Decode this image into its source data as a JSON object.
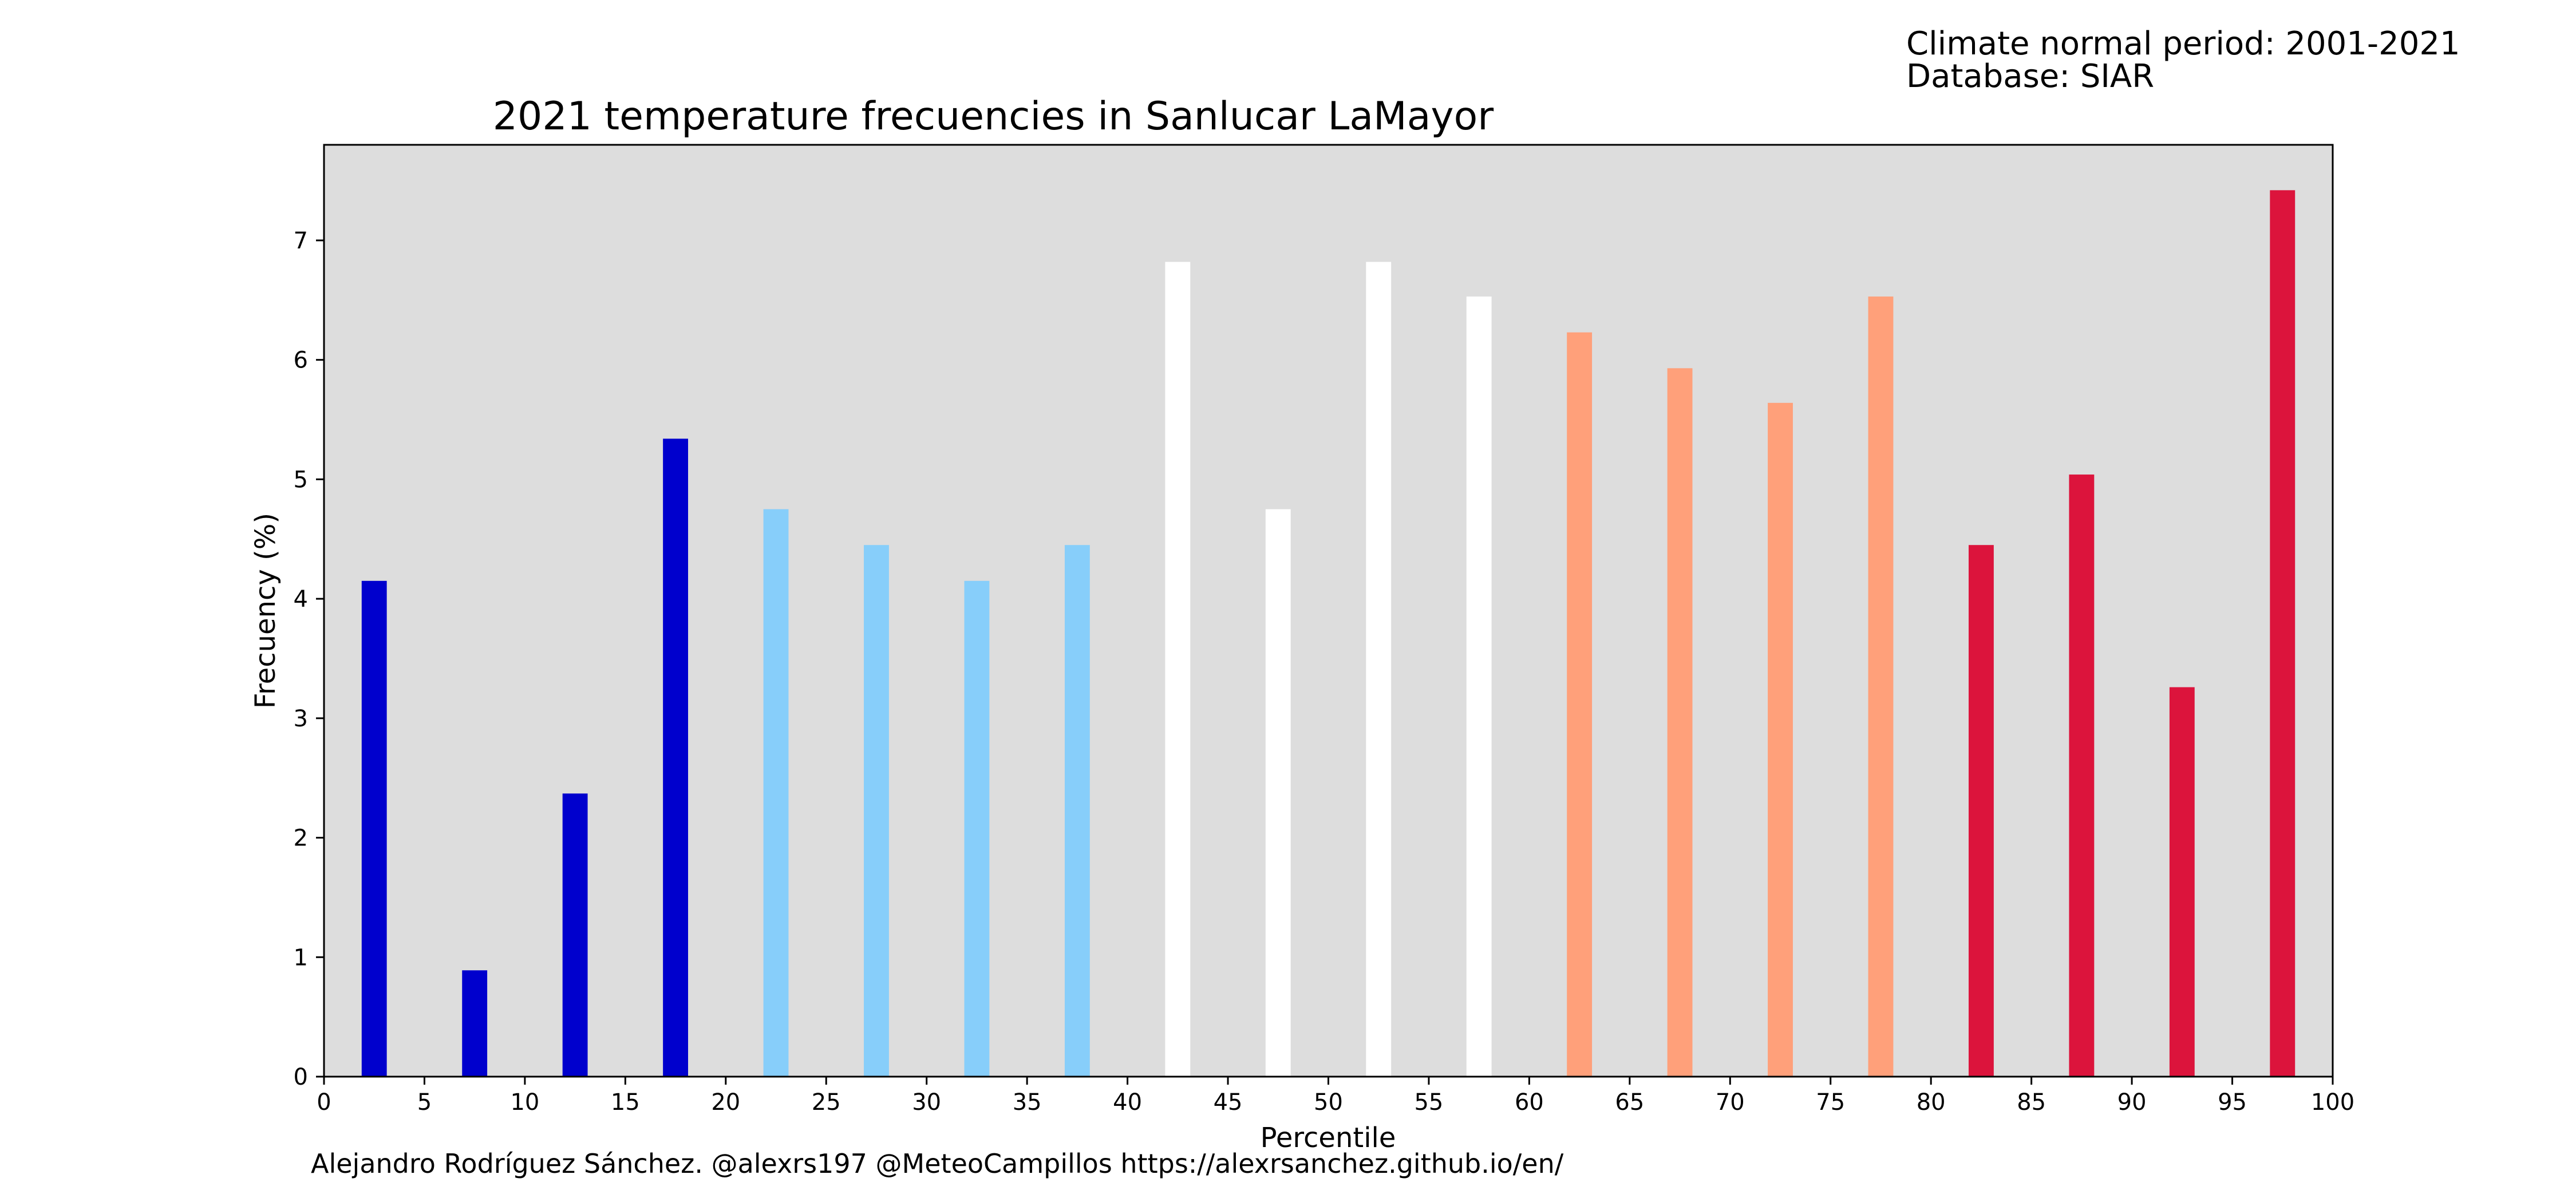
{
  "info": {
    "period": "Climate normal period: 2001-2021",
    "database": "Database: SIAR"
  },
  "footer": {
    "credit": "Alejandro Rodríguez Sánchez. @alexrs197 @MeteoCampillos   https://alexrsanchez.github.io/en/"
  },
  "colors": {
    "plot_background": "#dddddd",
    "very_cold": "#0000cd",
    "cold": "#87cefa",
    "normal": "#ffffff",
    "warm": "#ffa07a",
    "very_warm": "#dc143c"
  },
  "chart_data": {
    "type": "bar",
    "title": "2021 temperature frecuencies in Sanlucar LaMayor",
    "xlabel": "Percentile",
    "ylabel": "Frecuency (%)",
    "xlim": [
      0,
      100
    ],
    "ylim": [
      0,
      7.8
    ],
    "bar_width": 1.25,
    "grid": false,
    "xticks": [
      0,
      5,
      10,
      15,
      20,
      25,
      30,
      35,
      40,
      45,
      50,
      55,
      60,
      65,
      70,
      75,
      80,
      85,
      90,
      95,
      100
    ],
    "yticks": [
      0,
      1,
      2,
      3,
      4,
      5,
      6,
      7
    ],
    "bars": [
      {
        "x": 2.5,
        "value": 4.15,
        "color": "#0000cd"
      },
      {
        "x": 7.5,
        "value": 0.89,
        "color": "#0000cd"
      },
      {
        "x": 12.5,
        "value": 2.37,
        "color": "#0000cd"
      },
      {
        "x": 17.5,
        "value": 5.34,
        "color": "#0000cd"
      },
      {
        "x": 22.5,
        "value": 4.75,
        "color": "#87cefa"
      },
      {
        "x": 27.5,
        "value": 4.45,
        "color": "#87cefa"
      },
      {
        "x": 32.5,
        "value": 4.15,
        "color": "#87cefa"
      },
      {
        "x": 37.5,
        "value": 4.45,
        "color": "#87cefa"
      },
      {
        "x": 42.5,
        "value": 6.82,
        "color": "#ffffff"
      },
      {
        "x": 47.5,
        "value": 4.75,
        "color": "#ffffff"
      },
      {
        "x": 52.5,
        "value": 6.82,
        "color": "#ffffff"
      },
      {
        "x": 57.5,
        "value": 6.53,
        "color": "#ffffff"
      },
      {
        "x": 62.5,
        "value": 6.23,
        "color": "#ffa07a"
      },
      {
        "x": 67.5,
        "value": 5.93,
        "color": "#ffa07a"
      },
      {
        "x": 72.5,
        "value": 5.64,
        "color": "#ffa07a"
      },
      {
        "x": 77.5,
        "value": 6.53,
        "color": "#ffa07a"
      },
      {
        "x": 82.5,
        "value": 4.45,
        "color": "#dc143c"
      },
      {
        "x": 87.5,
        "value": 5.04,
        "color": "#dc143c"
      },
      {
        "x": 92.5,
        "value": 3.26,
        "color": "#dc143c"
      },
      {
        "x": 97.5,
        "value": 7.42,
        "color": "#dc143c"
      }
    ]
  }
}
